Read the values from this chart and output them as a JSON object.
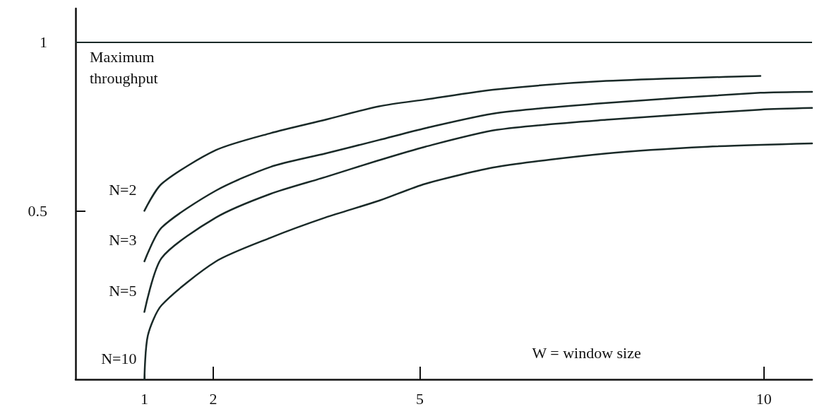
{
  "chart_data": {
    "type": "line",
    "xlabel": "W = window size",
    "marker": "none",
    "line_style": "solid",
    "grid": false,
    "legend": false,
    "xlim": [
      0,
      10.7
    ],
    "xticks": [
      1,
      2,
      5,
      10
    ],
    "ylim": [
      0,
      1.1
    ],
    "yticks": [
      0.5,
      1
    ],
    "ref_lines": [
      {
        "axis": "y",
        "value": 1,
        "label": "Maximum throughput",
        "color": "#1a2a28"
      }
    ],
    "series": [
      {
        "name": "N=2",
        "color": "#1a2a28",
        "x": [
          1,
          1.25,
          2.04,
          2.83,
          3.63,
          4.41,
          5.08,
          6.12,
          7.71,
          9.95
        ],
        "values": [
          0.5,
          0.58,
          0.68,
          0.73,
          0.77,
          0.81,
          0.83,
          0.86,
          0.885,
          0.9
        ]
      },
      {
        "name": "N=3",
        "color": "#1a2a28",
        "x": [
          1,
          1.25,
          2.04,
          2.83,
          3.63,
          4.41,
          5.08,
          6.12,
          7.71,
          9.95,
          10.7
        ],
        "values": [
          0.35,
          0.45,
          0.56,
          0.63,
          0.67,
          0.71,
          0.745,
          0.79,
          0.82,
          0.85,
          0.853
        ]
      },
      {
        "name": "N=5",
        "color": "#1a2a28",
        "x": [
          1,
          1.25,
          2.04,
          2.83,
          3.63,
          4.41,
          5.08,
          6.12,
          7.71,
          9.95,
          10.7
        ],
        "values": [
          0.2,
          0.36,
          0.48,
          0.55,
          0.6,
          0.65,
          0.69,
          0.74,
          0.77,
          0.8,
          0.805
        ]
      },
      {
        "name": "N=10",
        "color": "#1a2a28",
        "x": [
          1,
          1.05,
          1.25,
          2.04,
          2.83,
          3.63,
          4.41,
          5.08,
          6.12,
          7.71,
          9.18,
          10.7
        ],
        "values": [
          0,
          0.13,
          0.22,
          0.35,
          0.42,
          0.48,
          0.53,
          0.58,
          0.63,
          0.67,
          0.69,
          0.7
        ]
      }
    ]
  }
}
